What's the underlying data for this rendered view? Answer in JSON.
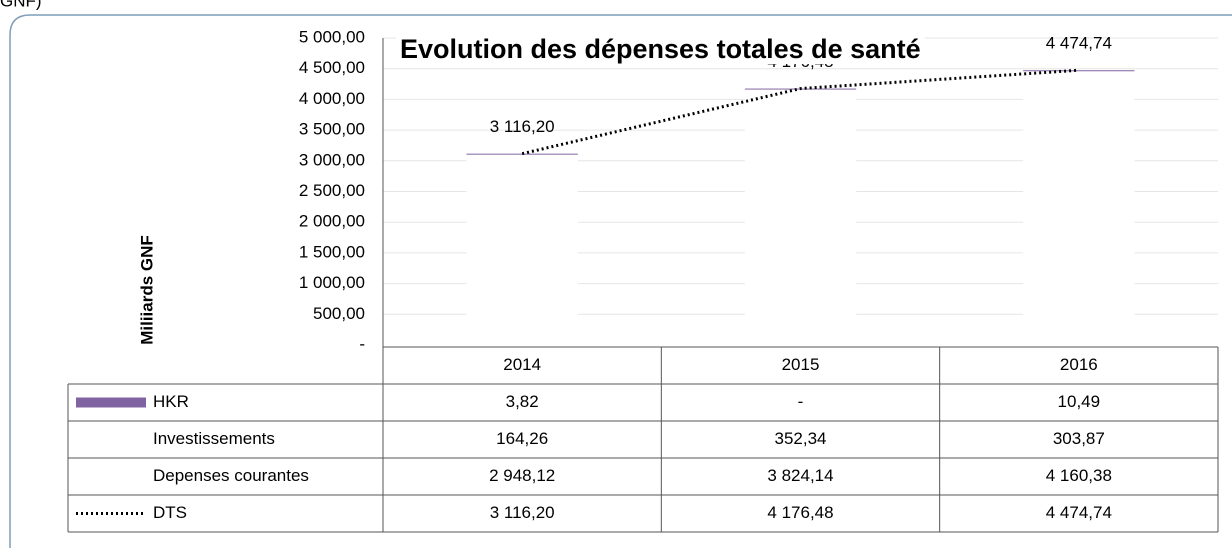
{
  "caption": "GNF)",
  "chart_data": {
    "type": "bar",
    "stacked": true,
    "title": "Evolution des dépenses totales de santé",
    "y_label": "Miliiards GNF",
    "categories": [
      "2014",
      "2015",
      "2016"
    ],
    "ylim": [
      0,
      5000
    ],
    "yticks": [
      {
        "value": 0,
        "label": "-"
      },
      {
        "value": 500,
        "label": "500,00"
      },
      {
        "value": 1000,
        "label": "1 000,00"
      },
      {
        "value": 1500,
        "label": "1 500,00"
      },
      {
        "value": 2000,
        "label": "2 000,00"
      },
      {
        "value": 2500,
        "label": "2 500,00"
      },
      {
        "value": 3000,
        "label": "3 000,00"
      },
      {
        "value": 3500,
        "label": "3 500,00"
      },
      {
        "value": 4000,
        "label": "4 000,00"
      },
      {
        "value": 4500,
        "label": "4 500,00"
      },
      {
        "value": 5000,
        "label": "5 000,00"
      }
    ],
    "grid": true,
    "data_table": true,
    "series": [
      {
        "name": "HKR",
        "type": "bar",
        "color": "#8064a2",
        "values": [
          3.82,
          0,
          10.49
        ],
        "value_labels": [
          "3,82",
          "-",
          "10,49"
        ]
      },
      {
        "name": "Investissements",
        "type": "bar",
        "color": "#ffffff",
        "values": [
          164.26,
          352.34,
          303.87
        ],
        "value_labels": [
          "164,26",
          "352,34",
          "303,87"
        ]
      },
      {
        "name": "Depenses courantes",
        "type": "bar",
        "color": "#ffffff",
        "values": [
          2948.12,
          3824.14,
          4160.38
        ],
        "value_labels": [
          "2 948,12",
          "3 824,14",
          "4 160,38"
        ]
      },
      {
        "name": "DTS",
        "type": "line",
        "color": "#000000",
        "dotted": true,
        "values": [
          3116.2,
          4176.48,
          4474.74
        ],
        "value_labels": [
          "3 116,20",
          "4 176,48",
          "4 474,74"
        ]
      }
    ]
  }
}
